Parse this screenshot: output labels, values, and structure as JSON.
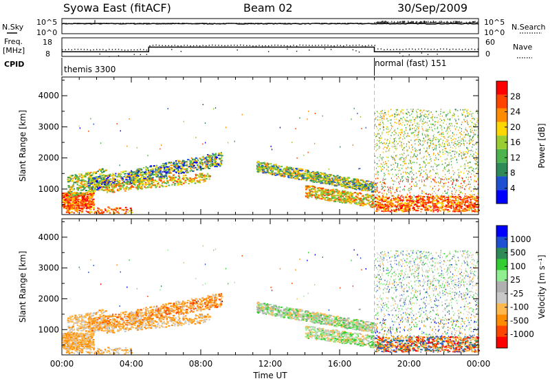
{
  "header": {
    "title": "Syowa East (fitACF)",
    "beam": "Beam 02",
    "date": "30/Sep/2009"
  },
  "strip1": {
    "left_label": "N.Sky",
    "right_label": "N.Search",
    "left_ticks": [
      "10^5",
      "10^0"
    ],
    "right_ticks": [
      "10^5",
      "10^0"
    ]
  },
  "strip2": {
    "left_label_1": "Freq.",
    "left_label_2": "[MHz]",
    "right_label": "Nave",
    "left_ticks": [
      "18",
      "8"
    ],
    "right_ticks": [
      "60",
      "0"
    ]
  },
  "cpid": {
    "label": "CPID",
    "segments": [
      {
        "name": "themis 3300",
        "start_hour": 0,
        "end_hour": 18
      },
      {
        "name": "normal (fast) 151",
        "start_hour": 18,
        "end_hour": 24
      }
    ]
  },
  "colors": {
    "power_scale": [
      "#0000ff",
      "#1e50d2",
      "#2e8b57",
      "#4db34d",
      "#9acd32",
      "#ffd700",
      "#ff8c00",
      "#ff4500",
      "#ff0000"
    ],
    "velocity_scale": [
      "#ff0000",
      "#ff4500",
      "#ff8c00",
      "#ffb84d",
      "#c8c8c8",
      "#b0b0b0",
      "#90ee90",
      "#32cd32",
      "#2e8b57",
      "#1e50d2",
      "#0000ff"
    ]
  },
  "chart_data": [
    {
      "type": "heatmap",
      "name": "power",
      "ylabel": "Slant Range [km]",
      "xlabel": "",
      "ylim": [
        180,
        4600
      ],
      "xlim": [
        0,
        24
      ],
      "y_ticks": [
        "1000",
        "2000",
        "3000",
        "4000"
      ],
      "colorbar_label": "Power [dB]",
      "colorbar_ticks": [
        "4",
        "8",
        "12",
        "16",
        "20",
        "24",
        "28"
      ],
      "colorbar_range": [
        0,
        32
      ]
    },
    {
      "type": "heatmap",
      "name": "velocity",
      "ylabel": "Slant Range [km]",
      "xlabel": "Time UT",
      "ylim": [
        180,
        4600
      ],
      "xlim": [
        0,
        24
      ],
      "x_ticks": [
        "00:00",
        "04:00",
        "08:00",
        "12:00",
        "16:00",
        "20:00",
        "00:00"
      ],
      "y_ticks": [
        "1000",
        "2000",
        "3000",
        "4000"
      ],
      "colorbar_label": "Velocity [m s⁻¹]",
      "colorbar_ticks": [
        "1000",
        "500",
        "100",
        "25",
        "-25",
        "-100",
        "-500",
        "-1000"
      ]
    },
    {
      "type": "line",
      "name": "frequency",
      "series": [
        {
          "x": [
            0,
            5,
            5,
            18,
            18,
            24
          ],
          "y": [
            10.5,
            10.5,
            13,
            13,
            10.5,
            10.5
          ]
        }
      ],
      "ylim": [
        8,
        18
      ]
    }
  ]
}
